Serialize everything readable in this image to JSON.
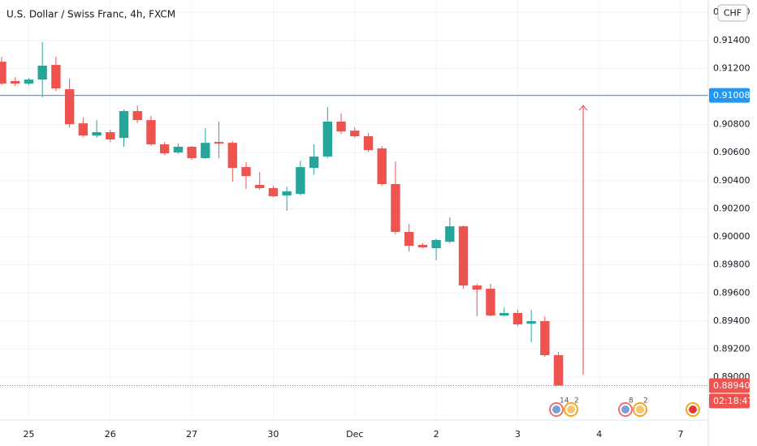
{
  "chart_data": {
    "type": "candlestick",
    "title": "U.S. Dollar / Swiss Franc, 4h, FXCM",
    "currency": "CHF",
    "up_color": "#26a69a",
    "down_color": "#ef5350",
    "grid": true,
    "x": [
      0,
      1,
      2,
      3,
      4,
      5,
      6,
      7,
      8,
      9,
      10,
      11,
      12,
      13,
      14,
      15,
      16,
      17,
      18,
      19,
      20,
      21,
      22,
      23,
      24,
      25,
      26,
      27,
      28,
      29,
      30,
      31,
      32,
      33,
      34,
      35,
      36,
      37,
      38,
      39,
      40,
      41
    ],
    "open": [
      0.91248,
      0.9111,
      0.91092,
      0.91121,
      0.91225,
      0.91052,
      0.90809,
      0.90722,
      0.90746,
      0.90705,
      0.90896,
      0.90832,
      0.90659,
      0.90601,
      0.90642,
      0.90561,
      0.90676,
      0.9067,
      0.90497,
      0.9037,
      0.90347,
      0.90295,
      0.90306,
      0.90491,
      0.90572,
      0.90821,
      0.90757,
      0.90717,
      0.9063,
      0.90376,
      0.90035,
      0.89942,
      0.89919,
      0.89965,
      0.90075,
      0.89653,
      0.8963,
      0.89439,
      0.89457,
      0.89381,
      0.89399,
      0.89156
    ],
    "high": [
      0.91283,
      0.91139,
      0.91133,
      0.91387,
      0.91283,
      0.91127,
      0.9085,
      0.90832,
      0.90763,
      0.90907,
      0.90936,
      0.90861,
      0.90676,
      0.90665,
      0.90647,
      0.90774,
      0.90821,
      0.90682,
      0.90532,
      0.90462,
      0.90364,
      0.90358,
      0.90543,
      0.90659,
      0.90925,
      0.90879,
      0.9078,
      0.9074,
      0.90647,
      0.90538,
      0.90092,
      0.89954,
      0.89988,
      0.90139,
      0.90081,
      0.89665,
      0.89665,
      0.89497,
      0.8948,
      0.8948,
      0.89434,
      0.89179
    ],
    "low": [
      0.91081,
      0.91075,
      0.91081,
      0.90994,
      0.9104,
      0.9078,
      0.90711,
      0.90705,
      0.90676,
      0.90642,
      0.90809,
      0.90647,
      0.90584,
      0.9059,
      0.90549,
      0.90555,
      0.90561,
      0.90393,
      0.90341,
      0.90335,
      0.90283,
      0.90185,
      0.90295,
      0.90445,
      0.90561,
      0.90734,
      0.90705,
      0.90607,
      0.90364,
      0.90017,
      0.89896,
      0.89919,
      0.89832,
      0.89954,
      0.8963,
      0.89434,
      0.89434,
      0.89434,
      0.89364,
      0.89249,
      0.89145,
      0.8894
    ],
    "close": [
      0.91092,
      0.91092,
      0.91121,
      0.9122,
      0.91058,
      0.90803,
      0.90722,
      0.90746,
      0.90694,
      0.90896,
      0.90832,
      0.90659,
      0.90595,
      0.90642,
      0.90561,
      0.9067,
      0.90665,
      0.90491,
      0.90433,
      0.90347,
      0.90289,
      0.90324,
      0.90497,
      0.90572,
      0.90821,
      0.90751,
      0.90717,
      0.90618,
      0.90376,
      0.90035,
      0.89936,
      0.89925,
      0.89977,
      0.90075,
      0.89653,
      0.89624,
      0.89439,
      0.89457,
      0.89376,
      0.89399,
      0.89156,
      0.8894
    ],
    "xlim": [
      -0.12,
      52.03
    ],
    "xticks": [
      {
        "value": 2,
        "label": "25"
      },
      {
        "value": 8,
        "label": "26"
      },
      {
        "value": 14,
        "label": "27"
      },
      {
        "value": 20,
        "label": "30"
      },
      {
        "value": 26,
        "label": "Dec"
      },
      {
        "value": 32,
        "label": "2"
      },
      {
        "value": 38,
        "label": "3"
      },
      {
        "value": 44,
        "label": "4"
      },
      {
        "value": 50,
        "label": "7"
      }
    ],
    "ylim": [
      0.88694,
      0.91688
    ],
    "yticks": [
      {
        "value": 0.916,
        "label": "0.91600"
      },
      {
        "value": 0.914,
        "label": "0.91400"
      },
      {
        "value": 0.912,
        "label": "0.91200"
      },
      {
        "value": 0.91,
        "label": "0.91000"
      },
      {
        "value": 0.908,
        "label": "0.90800"
      },
      {
        "value": 0.906,
        "label": "0.90600"
      },
      {
        "value": 0.904,
        "label": "0.90400"
      },
      {
        "value": 0.902,
        "label": "0.90200"
      },
      {
        "value": 0.9,
        "label": "0.90000"
      },
      {
        "value": 0.898,
        "label": "0.89800"
      },
      {
        "value": 0.896,
        "label": "0.89600"
      },
      {
        "value": 0.894,
        "label": "0.89400"
      },
      {
        "value": 0.892,
        "label": "0.89200"
      },
      {
        "value": 0.89,
        "label": "0.89000"
      }
    ],
    "price_line": {
      "value": 0.91008,
      "color": "#2196f3"
    },
    "last_price": {
      "value": 0.8894,
      "label": "0.88940"
    },
    "countdown": "02:18:47",
    "arrow": {
      "x": 42.82,
      "from": 0.89017,
      "to": 0.90936,
      "color": "#f23645"
    },
    "events": [
      14,
      2,
      8,
      2
    ]
  }
}
